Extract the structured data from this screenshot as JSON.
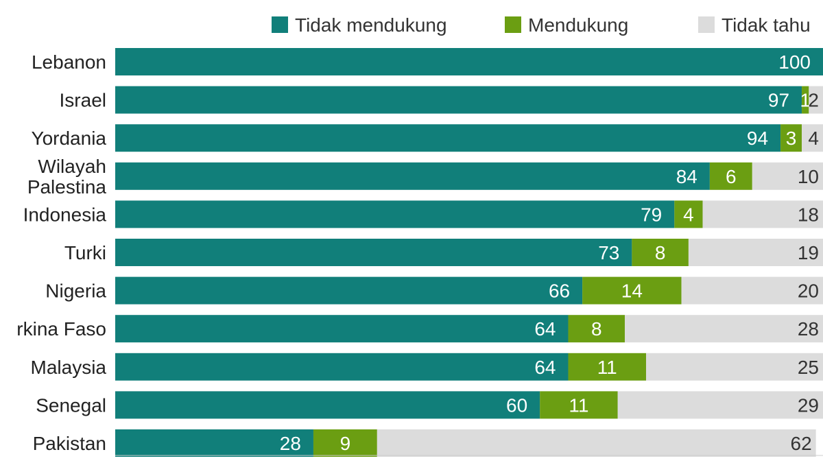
{
  "chart_data": {
    "type": "bar",
    "orientation": "horizontal",
    "stacked": true,
    "legend_position": "top",
    "xlim": [
      0,
      100
    ],
    "categories": [
      [
        "Lebanon"
      ],
      [
        "Israel"
      ],
      [
        "Yordania"
      ],
      [
        "Wilayah",
        "Palestina"
      ],
      [
        "Indonesia"
      ],
      [
        "Turki"
      ],
      [
        "Nigeria"
      ],
      [
        "rkina Faso"
      ],
      [
        "Malaysia"
      ],
      [
        "Senegal"
      ],
      [
        "Pakistan"
      ]
    ],
    "series": [
      {
        "name": "Tidak mendukung",
        "color": "#117f7a",
        "label_color": "#ffffff",
        "values": [
          100,
          97,
          94,
          84,
          79,
          73,
          66,
          64,
          64,
          60,
          28
        ]
      },
      {
        "name": "Mendukung",
        "color": "#6b9e12",
        "label_color": "#ffffff",
        "values": [
          0,
          1,
          3,
          6,
          4,
          8,
          14,
          8,
          11,
          11,
          9
        ]
      },
      {
        "name": "Tidak tahu",
        "color": "#dcdcdc",
        "label_color": "#333333",
        "values": [
          0,
          2,
          4,
          10,
          18,
          19,
          20,
          28,
          25,
          29,
          62
        ]
      }
    ]
  }
}
